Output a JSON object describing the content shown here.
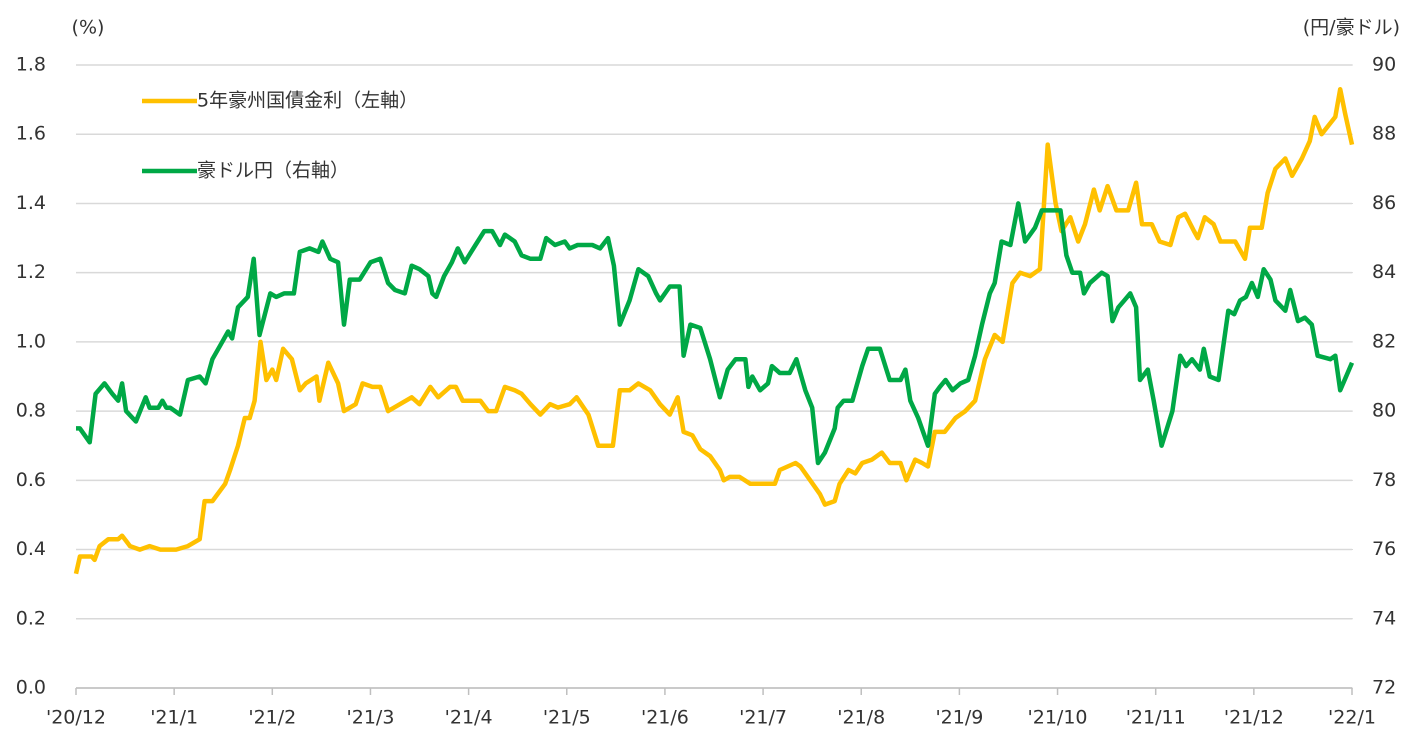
{
  "chart_data": {
    "type": "line",
    "y_label": "(%)",
    "y2_label": "(円/豪ドル)",
    "xlim": [
      0,
      13
    ],
    "xticks": [
      {
        "value": 0,
        "label": "'20/12"
      },
      {
        "value": 1,
        "label": "'21/1"
      },
      {
        "value": 2,
        "label": "'21/2"
      },
      {
        "value": 3,
        "label": "'21/3"
      },
      {
        "value": 4,
        "label": "'21/4"
      },
      {
        "value": 5,
        "label": "'21/5"
      },
      {
        "value": 6,
        "label": "'21/6"
      },
      {
        "value": 7,
        "label": "'21/7"
      },
      {
        "value": 8,
        "label": "'21/8"
      },
      {
        "value": 9,
        "label": "'21/9"
      },
      {
        "value": 10,
        "label": "'21/10"
      },
      {
        "value": 11,
        "label": "'21/11"
      },
      {
        "value": 12,
        "label": "'21/12"
      },
      {
        "value": 13,
        "label": "'22/1"
      }
    ],
    "ylim": [
      0,
      1.8
    ],
    "yticks": [
      {
        "value": 0,
        "label": "0.0"
      },
      0.2,
      0.4,
      0.6,
      0.8,
      {
        "value": 1,
        "label": "1.0"
      },
      1.2,
      1.4,
      1.6,
      1.8
    ],
    "y2lim": [
      72,
      90
    ],
    "y2ticks": [
      72,
      74,
      76,
      78,
      80,
      82,
      84,
      86,
      88,
      90
    ],
    "grid": true,
    "legend": "top-left",
    "series": [
      {
        "name": "5年豪州国債金利（左軸）",
        "color": "#ffc000",
        "axis": "y",
        "x": [
          0,
          0.04,
          0.16,
          0.19,
          0.24,
          0.33,
          0.43,
          0.47,
          0.55,
          0.65,
          0.75,
          0.86,
          1.02,
          1.14,
          1.26,
          1.31,
          1.39,
          1.52,
          1.57,
          1.65,
          1.72,
          1.77,
          1.82,
          1.88,
          1.94,
          2.0,
          2.04,
          2.11,
          2.2,
          2.28,
          2.34,
          2.45,
          2.48,
          2.57,
          2.67,
          2.73,
          2.85,
          2.92,
          3.02,
          3.1,
          3.18,
          3.3,
          3.42,
          3.5,
          3.61,
          3.69,
          3.81,
          3.87,
          3.94,
          4.01,
          4.12,
          4.2,
          4.28,
          4.37,
          4.47,
          4.54,
          4.63,
          4.73,
          4.83,
          4.91,
          5.03,
          5.1,
          5.22,
          5.32,
          5.47,
          5.54,
          5.64,
          5.73,
          5.85,
          5.95,
          6.05,
          6.13,
          6.19,
          6.28,
          6.36,
          6.46,
          6.56,
          6.6,
          6.66,
          6.76,
          6.87,
          6.97,
          7.12,
          7.17,
          7.33,
          7.38,
          7.48,
          7.58,
          7.63,
          7.73,
          7.78,
          7.87,
          7.94,
          8.01,
          8.11,
          8.21,
          8.29,
          8.4,
          8.46,
          8.55,
          8.62,
          8.68,
          8.75,
          8.85,
          8.96,
          9.06,
          9.16,
          9.26,
          9.36,
          9.44,
          9.54,
          9.62,
          9.72,
          9.82,
          9.9,
          9.98,
          10.04,
          10.13,
          10.21,
          10.28,
          10.37,
          10.43,
          10.51,
          10.6,
          10.72,
          10.8,
          10.86,
          10.96,
          11.04,
          11.15,
          11.23,
          11.3,
          11.39,
          11.43,
          11.5,
          11.59,
          11.66,
          11.81,
          11.91,
          11.96,
          12.08,
          12.14,
          12.22,
          12.32,
          12.39,
          12.49,
          12.57,
          12.62,
          12.69,
          12.83,
          12.88,
          12.93,
          13.0
        ],
        "values": [
          0.33,
          0.38,
          0.38,
          0.37,
          0.41,
          0.43,
          0.43,
          0.44,
          0.41,
          0.4,
          0.41,
          0.4,
          0.4,
          0.41,
          0.43,
          0.54,
          0.54,
          0.59,
          0.63,
          0.7,
          0.78,
          0.78,
          0.83,
          1.0,
          0.89,
          0.92,
          0.89,
          0.98,
          0.95,
          0.86,
          0.88,
          0.9,
          0.83,
          0.94,
          0.88,
          0.8,
          0.82,
          0.88,
          0.87,
          0.87,
          0.8,
          0.82,
          0.84,
          0.82,
          0.87,
          0.84,
          0.87,
          0.87,
          0.83,
          0.83,
          0.83,
          0.8,
          0.8,
          0.87,
          0.86,
          0.85,
          0.82,
          0.79,
          0.82,
          0.81,
          0.82,
          0.84,
          0.79,
          0.7,
          0.7,
          0.86,
          0.86,
          0.88,
          0.86,
          0.82,
          0.79,
          0.84,
          0.74,
          0.73,
          0.69,
          0.67,
          0.63,
          0.6,
          0.61,
          0.61,
          0.59,
          0.59,
          0.59,
          0.63,
          0.65,
          0.64,
          0.6,
          0.56,
          0.53,
          0.54,
          0.59,
          0.63,
          0.62,
          0.65,
          0.66,
          0.68,
          0.65,
          0.65,
          0.6,
          0.66,
          0.65,
          0.64,
          0.74,
          0.74,
          0.78,
          0.8,
          0.83,
          0.95,
          1.02,
          1.0,
          1.17,
          1.2,
          1.19,
          1.21,
          1.57,
          1.4,
          1.32,
          1.36,
          1.29,
          1.34,
          1.44,
          1.38,
          1.45,
          1.38,
          1.38,
          1.46,
          1.34,
          1.34,
          1.29,
          1.28,
          1.36,
          1.37,
          1.32,
          1.3,
          1.36,
          1.34,
          1.29,
          1.29,
          1.24,
          1.33,
          1.33,
          1.43,
          1.5,
          1.53,
          1.48,
          1.53,
          1.58,
          1.65,
          1.6,
          1.65,
          1.73,
          1.66,
          1.57
        ]
      },
      {
        "name": "豪ドル円（右軸）",
        "color": "#00a846",
        "axis": "y2",
        "x": [
          0,
          0.04,
          0.14,
          0.2,
          0.29,
          0.37,
          0.43,
          0.47,
          0.51,
          0.61,
          0.71,
          0.75,
          0.84,
          0.88,
          0.92,
          0.96,
          1.06,
          1.14,
          1.26,
          1.32,
          1.39,
          1.47,
          1.55,
          1.59,
          1.65,
          1.75,
          1.81,
          1.87,
          1.98,
          2.04,
          2.12,
          2.22,
          2.28,
          2.38,
          2.47,
          2.51,
          2.59,
          2.67,
          2.73,
          2.79,
          2.89,
          3.0,
          3.1,
          3.18,
          3.25,
          3.35,
          3.42,
          3.5,
          3.59,
          3.63,
          3.67,
          3.75,
          3.83,
          3.89,
          3.96,
          4.07,
          4.16,
          4.24,
          4.32,
          4.37,
          4.47,
          4.54,
          4.63,
          4.73,
          4.79,
          4.88,
          4.98,
          5.03,
          5.11,
          5.26,
          5.34,
          5.42,
          5.48,
          5.54,
          5.64,
          5.73,
          5.83,
          5.91,
          5.95,
          6.05,
          6.15,
          6.19,
          6.26,
          6.36,
          6.46,
          6.56,
          6.64,
          6.72,
          6.82,
          6.85,
          6.89,
          6.97,
          7.05,
          7.09,
          7.17,
          7.27,
          7.34,
          7.43,
          7.5,
          7.56,
          7.63,
          7.73,
          7.76,
          7.82,
          7.91,
          7.95,
          8.01,
          8.07,
          8.19,
          8.29,
          8.4,
          8.45,
          8.5,
          8.58,
          8.68,
          8.75,
          8.8,
          8.86,
          8.93,
          9.01,
          9.09,
          9.16,
          9.23,
          9.31,
          9.36,
          9.43,
          9.52,
          9.6,
          9.67,
          9.77,
          9.84,
          9.92,
          10.03,
          10.09,
          10.15,
          10.23,
          10.27,
          10.33,
          10.45,
          10.51,
          10.56,
          10.62,
          10.68,
          10.74,
          10.8,
          10.84,
          10.92,
          10.98,
          11.06,
          11.17,
          11.25,
          11.31,
          11.37,
          11.45,
          11.49,
          11.55,
          11.64,
          11.74,
          11.8,
          11.86,
          11.92,
          11.98,
          12.04,
          12.1,
          12.17,
          12.22,
          12.32,
          12.37,
          12.45,
          12.52,
          12.59,
          12.65,
          12.78,
          12.83,
          12.88,
          13.0
        ],
        "values": [
          79.5,
          79.5,
          79.1,
          80.5,
          80.8,
          80.5,
          80.3,
          80.8,
          80.0,
          79.7,
          80.4,
          80.1,
          80.1,
          80.3,
          80.1,
          80.1,
          79.9,
          80.9,
          81.0,
          80.8,
          81.5,
          81.9,
          82.3,
          82.1,
          83.0,
          83.3,
          84.4,
          82.2,
          83.4,
          83.3,
          83.4,
          83.4,
          84.6,
          84.7,
          84.6,
          84.9,
          84.4,
          84.3,
          82.5,
          83.8,
          83.8,
          84.3,
          84.4,
          83.7,
          83.5,
          83.4,
          84.2,
          84.1,
          83.9,
          83.4,
          83.3,
          83.9,
          84.3,
          84.7,
          84.3,
          84.8,
          85.2,
          85.2,
          84.8,
          85.1,
          84.9,
          84.5,
          84.4,
          84.4,
          85.0,
          84.8,
          84.9,
          84.7,
          84.8,
          84.8,
          84.7,
          85.0,
          84.2,
          82.5,
          83.2,
          84.1,
          83.9,
          83.4,
          83.2,
          83.6,
          83.6,
          81.6,
          82.5,
          82.4,
          81.5,
          80.4,
          81.2,
          81.5,
          81.5,
          80.7,
          81.0,
          80.6,
          80.8,
          81.3,
          81.1,
          81.1,
          81.5,
          80.6,
          80.1,
          78.5,
          78.8,
          79.5,
          80.1,
          80.3,
          80.3,
          80.7,
          81.3,
          81.8,
          81.8,
          80.9,
          80.9,
          81.2,
          80.3,
          79.8,
          79.0,
          80.5,
          80.7,
          80.9,
          80.6,
          80.8,
          80.9,
          81.6,
          82.5,
          83.4,
          83.7,
          84.9,
          84.8,
          86.0,
          84.9,
          85.3,
          85.8,
          85.8,
          85.8,
          84.5,
          84.0,
          84.0,
          83.4,
          83.7,
          84.0,
          83.9,
          82.6,
          83.0,
          83.2,
          83.4,
          83.0,
          80.9,
          81.2,
          80.3,
          79.0,
          80.0,
          81.6,
          81.3,
          81.5,
          81.2,
          81.8,
          81.0,
          80.9,
          82.9,
          82.8,
          83.2,
          83.3,
          83.7,
          83.3,
          84.1,
          83.8,
          83.2,
          82.9,
          83.5,
          82.6,
          82.7,
          82.5,
          81.6,
          81.5,
          81.6,
          80.6,
          81.4
        ]
      }
    ]
  }
}
